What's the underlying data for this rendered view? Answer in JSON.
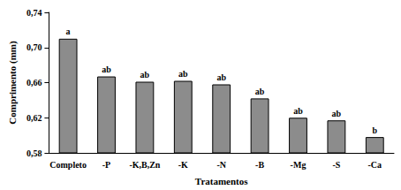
{
  "chart_data": {
    "type": "bar",
    "x_label": "Tratamentos",
    "y_label": "Comprimento (mm)",
    "categories": [
      "Completo",
      "-P",
      "-K,B,Zn",
      "-K",
      "-N",
      "-B",
      "-Mg",
      "-S",
      "-Ca"
    ],
    "values": [
      0.71,
      0.667,
      0.661,
      0.662,
      0.658,
      0.642,
      0.62,
      0.617,
      0.598
    ],
    "annotations": [
      "a",
      "ab",
      "ab",
      "ab",
      "ab",
      "ab",
      "ab",
      "ab",
      "b"
    ],
    "color": "#8c8c8c",
    "ylim": [
      0.58,
      0.74
    ],
    "yticks": [
      {
        "value": 0.58,
        "label": "0,58"
      },
      {
        "value": 0.62,
        "label": "0,62"
      },
      {
        "value": 0.66,
        "label": "0,66"
      },
      {
        "value": 0.7,
        "label": "0,70"
      },
      {
        "value": 0.74,
        "label": "0,74"
      }
    ],
    "grid": false
  }
}
